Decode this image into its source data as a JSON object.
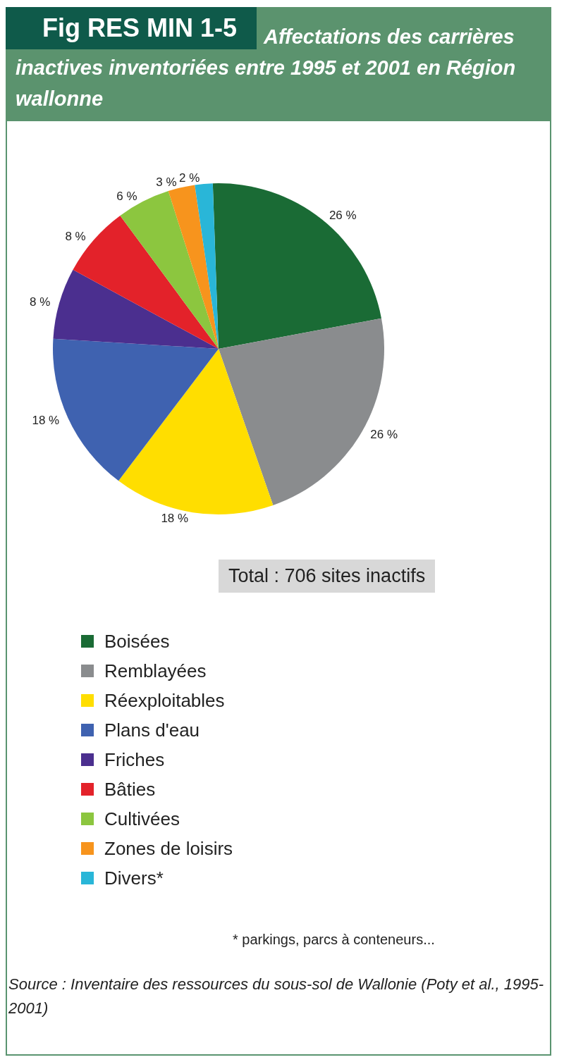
{
  "chart_data": {
    "type": "pie",
    "title": "Fig RES MIN 1-5",
    "subtitle": "Affectations des carrières inactives inventoriées entre 1995 et 2001 en Région wallonne",
    "categories": [
      "Boisées",
      "Remblayées",
      "Réexploitables",
      "Plans d'eau",
      "Friches",
      "Bâties",
      "Cultivées",
      "Zones de loisirs",
      "Divers*"
    ],
    "values": [
      26,
      26,
      18,
      18,
      8,
      8,
      6,
      3,
      2
    ],
    "value_labels": [
      "26 %",
      "26 %",
      "18 %",
      "18 %",
      "8 %",
      "8 %",
      "6 %",
      "3 %",
      "2 %"
    ],
    "colors": [
      "#1a6b35",
      "#8a8c8e",
      "#ffde00",
      "#3f62b0",
      "#4b2f8f",
      "#e3222a",
      "#8cc63f",
      "#f7941d",
      "#29b6d8"
    ],
    "legend": "bottom left",
    "annotations": [
      "Total : 706 sites inactifs",
      "* parkings, parcs à conteneurs...",
      "Source : Inventaire des ressources du sous-sol de Wallonie (Poty et al., 1995-2001)"
    ]
  }
}
